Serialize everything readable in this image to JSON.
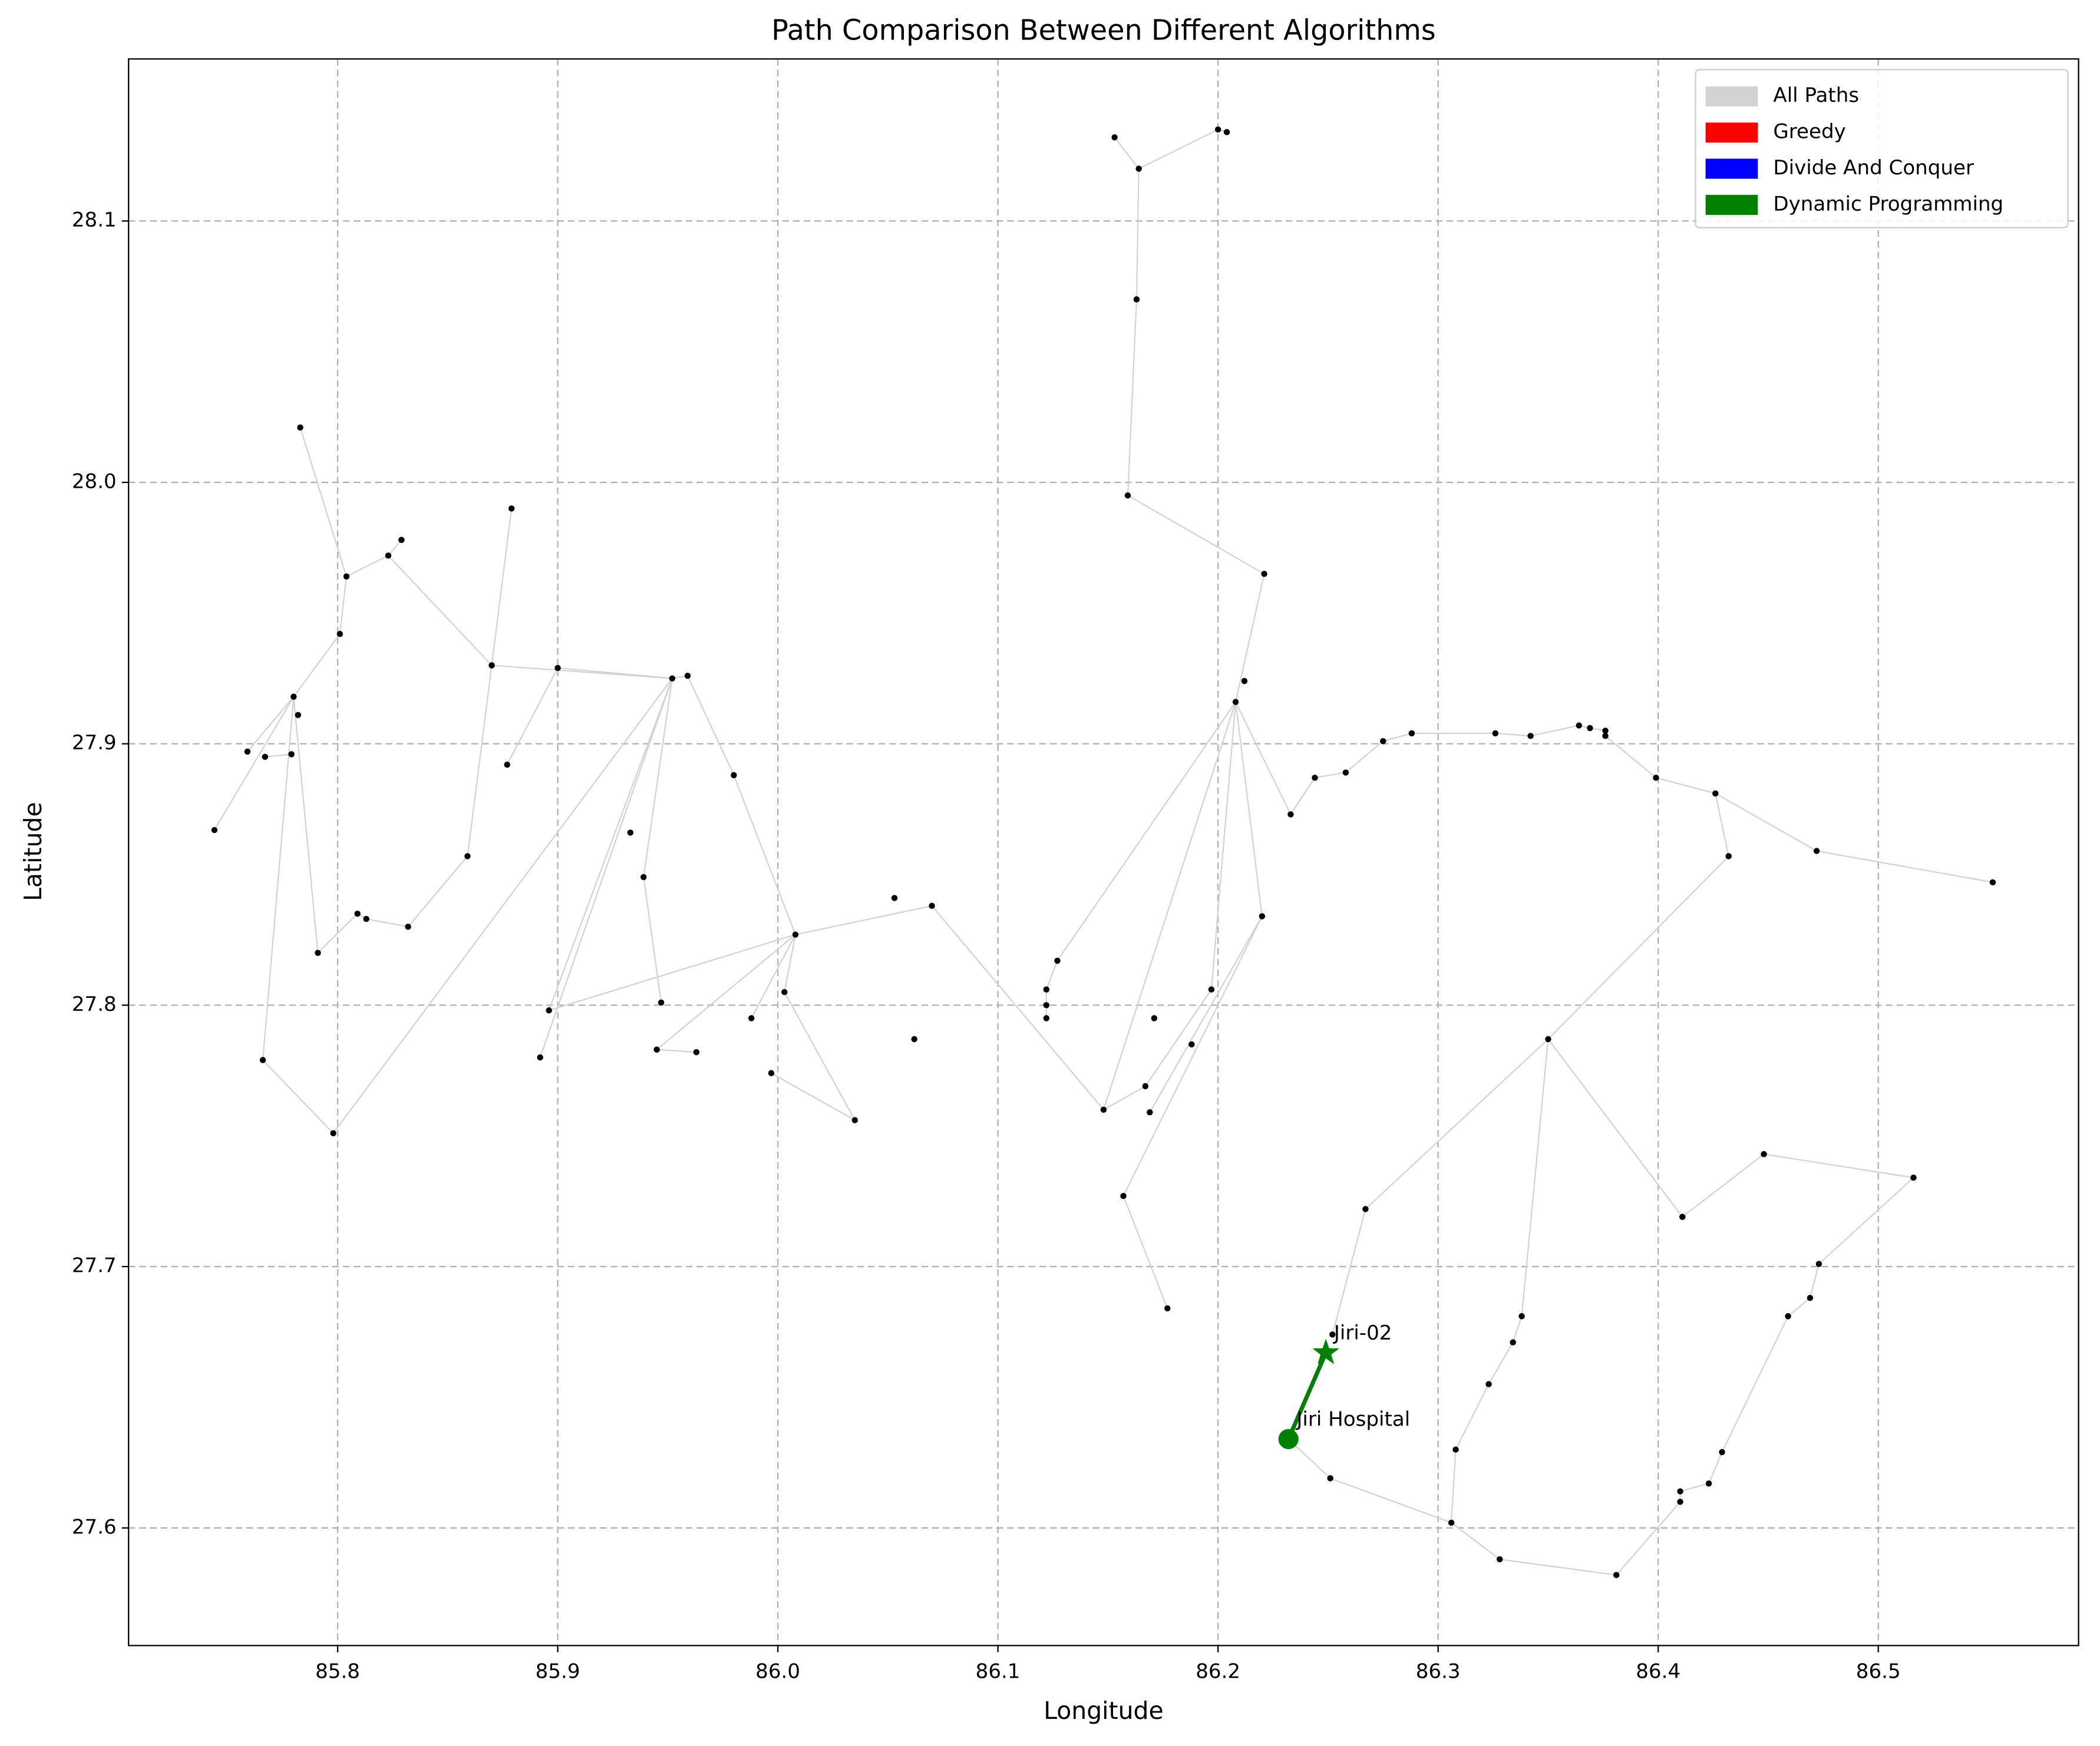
{
  "chart_data": {
    "type": "network",
    "title": "Path Comparison Between Different Algorithms",
    "xlabel": "Longitude",
    "ylabel": "Latitude",
    "xlim": [
      85.705,
      86.591
    ],
    "ylim": [
      27.555,
      28.162
    ],
    "xticks": [
      85.8,
      85.9,
      {
        "value": 86,
        "label": "86.0"
      },
      86.1,
      86.2,
      86.3,
      86.4,
      86.5
    ],
    "yticks": [
      27.6,
      27.7,
      27.8,
      27.9,
      {
        "value": 28,
        "label": "28.0"
      },
      28.1
    ],
    "grid": true,
    "legend": "upper right",
    "start_label": "Jiri Hospital",
    "end_label": "Jiri-02",
    "nodes": {
      "color": "#000000",
      "x": [
        85.744,
        85.759,
        85.767,
        85.779,
        85.78,
        85.782,
        85.783,
        85.801,
        85.804,
        85.823,
        85.829,
        85.766,
        85.791,
        85.798,
        85.809,
        85.813,
        85.832,
        85.859,
        85.87,
        85.877,
        85.879,
        85.9,
        85.952,
        85.959,
        85.98,
        85.933,
        85.939,
        85.947,
        85.896,
        85.892,
        85.945,
        85.963,
        85.988,
        85.997,
        86.003,
        86.008,
        86.035,
        86.053,
        86.07,
        86.062,
        86.122,
        86.122,
        86.122,
        86.127,
        86.148,
        86.167,
        86.169,
        86.171,
        86.188,
        86.197,
        86.22,
        86.157,
        86.177,
        86.159,
        86.163,
        86.164,
        86.153,
        86.2,
        86.204,
        86.221,
        86.212,
        86.208,
        86.233,
        86.244,
        86.258,
        86.275,
        86.288,
        86.326,
        86.342,
        86.364,
        86.369,
        86.376,
        86.376,
        86.399,
        86.426,
        86.432,
        86.472,
        86.552,
        86.35,
        86.267,
        86.411,
        86.448,
        86.516,
        86.473,
        86.469,
        86.459,
        86.429,
        86.423,
        86.41,
        86.41,
        86.381,
        86.328,
        86.306,
        86.308,
        86.323,
        86.334,
        86.338,
        86.251,
        86.252
      ],
      "y": [
        27.867,
        27.897,
        27.895,
        27.896,
        27.918,
        27.911,
        28.021,
        27.942,
        27.964,
        27.972,
        27.978,
        27.779,
        27.82,
        27.751,
        27.835,
        27.833,
        27.83,
        27.857,
        27.93,
        27.892,
        27.99,
        27.929,
        27.925,
        27.926,
        27.888,
        27.866,
        27.849,
        27.801,
        27.798,
        27.78,
        27.783,
        27.782,
        27.795,
        27.774,
        27.805,
        27.827,
        27.756,
        27.841,
        27.838,
        27.787,
        27.806,
        27.8,
        27.795,
        27.817,
        27.76,
        27.769,
        27.759,
        27.795,
        27.785,
        27.806,
        27.834,
        27.727,
        27.684,
        27.995,
        28.07,
        28.12,
        28.132,
        28.135,
        28.134,
        27.965,
        27.924,
        27.916,
        27.873,
        27.887,
        27.889,
        27.901,
        27.904,
        27.904,
        27.903,
        27.907,
        27.906,
        27.905,
        27.903,
        27.887,
        27.881,
        27.857,
        27.859,
        27.847,
        27.787,
        27.722,
        27.719,
        27.743,
        27.734,
        27.701,
        27.688,
        27.681,
        27.629,
        27.617,
        27.614,
        27.61,
        27.582,
        27.588,
        27.602,
        27.63,
        27.655,
        27.671,
        27.681,
        27.619,
        27.674
      ]
    },
    "series": [
      {
        "name": "All Paths",
        "color": "#d3d3d3",
        "x": [
          85.744,
          85.78,
          85.766,
          null,
          85.759,
          85.78,
          85.801,
          85.804,
          85.823,
          85.829,
          null,
          85.767,
          85.779,
          null,
          85.78,
          85.791,
          85.809,
          85.813,
          85.832,
          85.859,
          85.87,
          null,
          85.783,
          85.804,
          null,
          85.87,
          85.879,
          null,
          85.823,
          85.87,
          85.952,
          85.798,
          85.766,
          null,
          85.877,
          85.9,
          85.952,
          85.896,
          null,
          85.952,
          85.892,
          null,
          85.952,
          85.939,
          85.947,
          null,
          85.952,
          85.959,
          85.98,
          86.008,
          85.896,
          null,
          86.008,
          85.945,
          85.963,
          null,
          86.008,
          85.988,
          null,
          86.008,
          86.003,
          86.035,
          85.997,
          null,
          86.008,
          86.07,
          86.148,
          86.208,
          86.221,
          86.159,
          86.163,
          86.164,
          86.153,
          null,
          86.164,
          86.2,
          86.204,
          null,
          86.208,
          86.197,
          null,
          86.208,
          86.22,
          86.169,
          null,
          86.22,
          86.157,
          86.177,
          null,
          86.148,
          86.167,
          86.197,
          null,
          86.208,
          86.127,
          86.122,
          86.122,
          86.122,
          null,
          86.208,
          86.233,
          86.244,
          86.258,
          86.275,
          86.288,
          86.326,
          86.342,
          86.364,
          86.369,
          86.376,
          86.376,
          86.399,
          86.426,
          86.472,
          86.552,
          null,
          86.426,
          86.432,
          86.35,
          86.267,
          86.252,
          null,
          86.35,
          86.338,
          86.334,
          86.323,
          86.308,
          86.306,
          null,
          86.35,
          86.411,
          86.448,
          86.516,
          86.473,
          86.469,
          86.459,
          86.429,
          86.423,
          86.41,
          86.41,
          86.381,
          86.328,
          86.306,
          86.251,
          86.232
        ],
        "y": [
          27.867,
          27.918,
          27.779,
          null,
          27.897,
          27.918,
          27.942,
          27.964,
          27.972,
          27.978,
          null,
          27.895,
          27.896,
          null,
          27.918,
          27.82,
          27.835,
          27.833,
          27.83,
          27.857,
          27.93,
          null,
          28.021,
          27.964,
          null,
          27.93,
          27.99,
          null,
          27.972,
          27.93,
          27.925,
          27.751,
          27.779,
          null,
          27.892,
          27.929,
          27.925,
          27.798,
          null,
          27.925,
          27.78,
          null,
          27.925,
          27.849,
          27.801,
          null,
          27.925,
          27.926,
          27.888,
          27.827,
          27.798,
          null,
          27.827,
          27.783,
          27.782,
          null,
          27.827,
          27.795,
          null,
          27.827,
          27.805,
          27.756,
          27.774,
          null,
          27.827,
          27.838,
          27.76,
          27.916,
          27.965,
          27.995,
          28.07,
          28.12,
          28.132,
          null,
          28.12,
          28.135,
          28.134,
          null,
          27.916,
          27.806,
          null,
          27.916,
          27.834,
          27.759,
          null,
          27.834,
          27.727,
          27.684,
          null,
          27.76,
          27.769,
          27.806,
          null,
          27.916,
          27.817,
          27.806,
          27.8,
          27.795,
          null,
          27.916,
          27.873,
          27.887,
          27.889,
          27.901,
          27.904,
          27.904,
          27.903,
          27.907,
          27.906,
          27.905,
          27.903,
          27.887,
          27.881,
          27.859,
          27.847,
          null,
          27.881,
          27.857,
          27.787,
          27.722,
          27.674,
          null,
          27.787,
          27.681,
          27.671,
          27.655,
          27.63,
          27.602,
          null,
          27.787,
          27.719,
          27.743,
          27.734,
          27.701,
          27.688,
          27.681,
          27.629,
          27.617,
          27.614,
          27.61,
          27.582,
          27.588,
          27.602,
          27.619,
          27.634
        ]
      },
      {
        "name": "Greedy",
        "color": "#ff0000",
        "x": [
          86.232,
          86.249
        ],
        "y": [
          27.634,
          27.667
        ]
      },
      {
        "name": "Divide And Conquer",
        "color": "#0000ff",
        "x": [
          86.232,
          86.249
        ],
        "y": [
          27.634,
          27.667
        ]
      },
      {
        "name": "Dynamic Programming",
        "color": "#008000",
        "x": [
          86.232,
          86.249
        ],
        "y": [
          27.634,
          27.667
        ]
      }
    ]
  }
}
